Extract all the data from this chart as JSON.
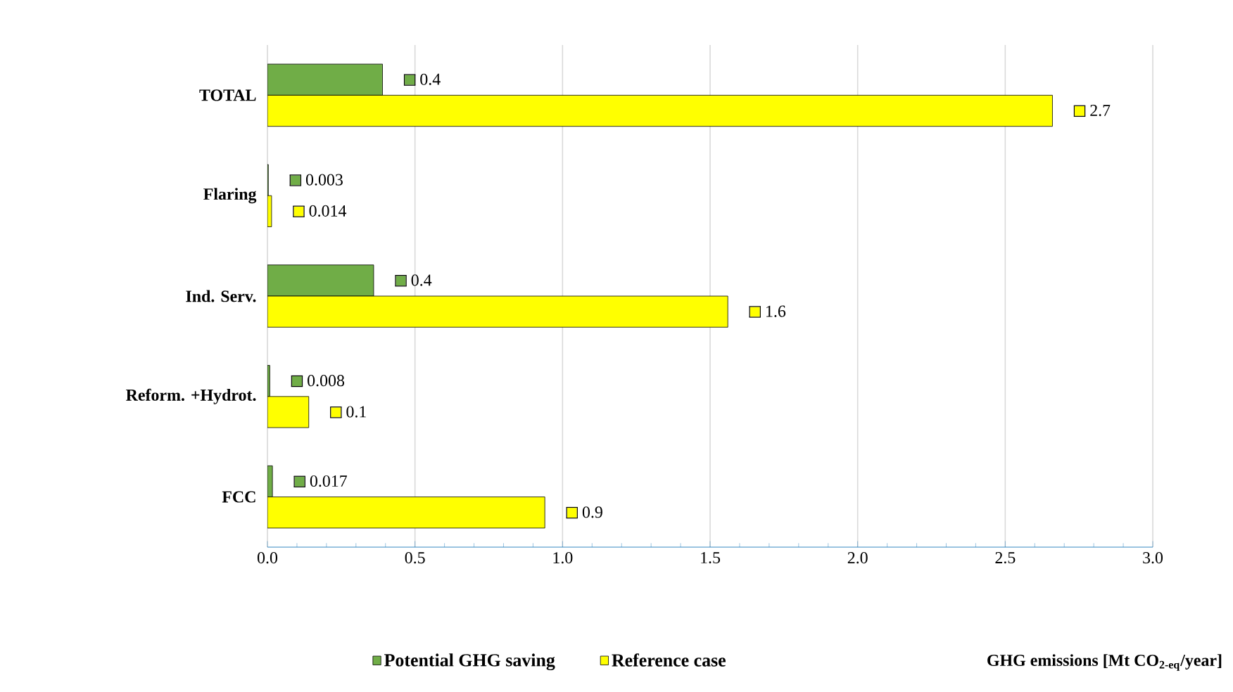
{
  "chart_data": {
    "type": "bar",
    "orientation": "horizontal",
    "categories": [
      "TOTAL",
      "Flaring",
      "Ind. Serv.",
      "Reform. +Hydrot.",
      "FCC"
    ],
    "series": [
      {
        "name": "Potential GHG saving",
        "color": "#70ad47",
        "values": [
          0.39,
          0.003,
          0.36,
          0.008,
          0.017
        ],
        "value_labels": [
          "0.4",
          "0.003",
          "0.4",
          "0.008",
          "0.017"
        ]
      },
      {
        "name": "Reference case",
        "color": "#ffff00",
        "values": [
          2.66,
          0.014,
          1.56,
          0.14,
          0.94
        ],
        "value_labels": [
          "2.7",
          "0.014",
          "1.6",
          "0.1",
          "0.9"
        ]
      }
    ],
    "xlim": [
      0,
      3
    ],
    "xticks": [
      {
        "value": 0,
        "label": "0.0"
      },
      {
        "value": 0.5,
        "label": "0.5"
      },
      {
        "value": 1,
        "label": "1.0"
      },
      {
        "value": 1.5,
        "label": "1.5"
      },
      {
        "value": 2,
        "label": "2.0"
      },
      {
        "value": 2.5,
        "label": "2.5"
      },
      {
        "value": 3,
        "label": "3.0"
      }
    ],
    "annotations": [
      "GHG emissions [Mt CO$_{2-eq}$/year]"
    ],
    "grid": "x",
    "legend": "bottom"
  }
}
